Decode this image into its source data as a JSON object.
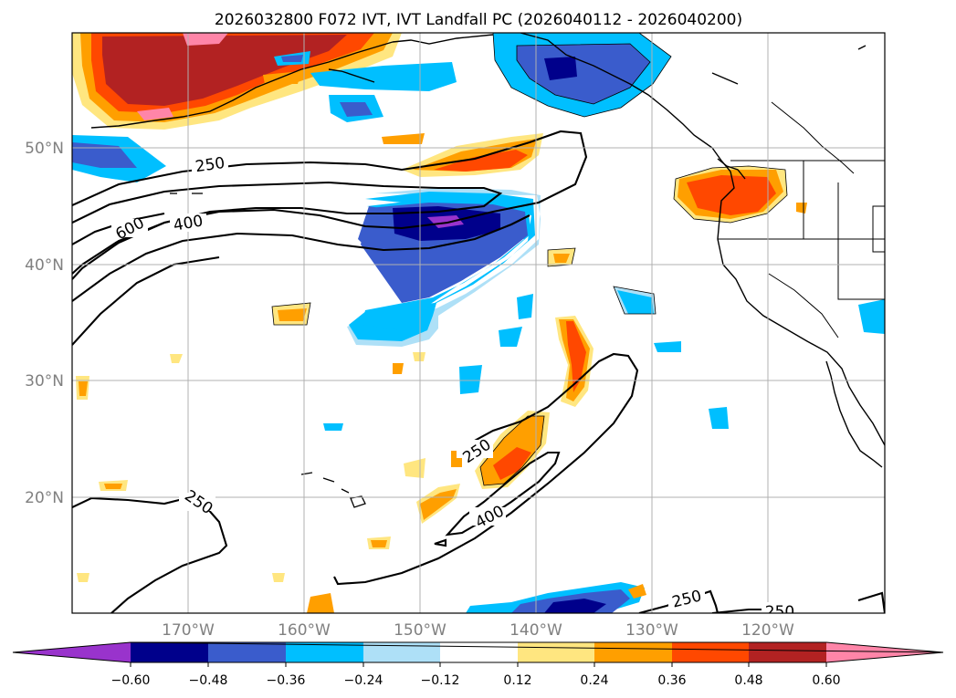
{
  "title": "2026032800 F072 IVT, IVT Landfall PC (2026040112 - 2026040200)",
  "lat_labels": [
    "50°N",
    "40°N",
    "30°N",
    "20°N"
  ],
  "lon_labels": [
    "170°W",
    "160°W",
    "150°W",
    "140°W",
    "130°W",
    "120°W"
  ],
  "colorbar": {
    "ticks": [
      "-0.60",
      "-0.48",
      "-0.36",
      "-0.24",
      "-0.12",
      "0.12",
      "0.24",
      "0.36",
      "0.48",
      "0.60"
    ],
    "colors": [
      "#9933cc",
      "#00008b",
      "#3a5ccc",
      "#00bfff",
      "#aee0f7",
      "#ffffff",
      "#ffe680",
      "#ff9f00",
      "#ff4800",
      "#b22222",
      "#ff85a8"
    ]
  },
  "contour_labels": [
    "250",
    "400",
    "600",
    "250",
    "250",
    "400",
    "250",
    "250"
  ],
  "colors": {
    "contour": "#000000",
    "grid": "#b0b0b0",
    "coast": "#000000"
  }
}
